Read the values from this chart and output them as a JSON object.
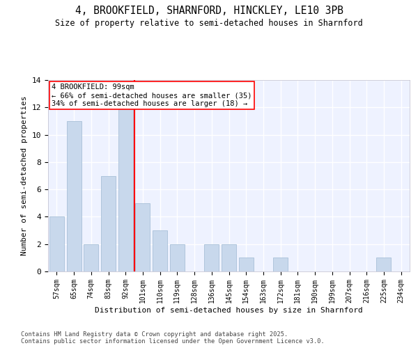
{
  "title_line1": "4, BROOKFIELD, SHARNFORD, HINCKLEY, LE10 3PB",
  "title_line2": "Size of property relative to semi-detached houses in Sharnford",
  "xlabel": "Distribution of semi-detached houses by size in Sharnford",
  "ylabel": "Number of semi-detached properties",
  "bins": [
    "57sqm",
    "65sqm",
    "74sqm",
    "83sqm",
    "92sqm",
    "101sqm",
    "110sqm",
    "119sqm",
    "128sqm",
    "136sqm",
    "145sqm",
    "154sqm",
    "163sqm",
    "172sqm",
    "181sqm",
    "190sqm",
    "199sqm",
    "207sqm",
    "216sqm",
    "225sqm",
    "234sqm"
  ],
  "counts": [
    4,
    11,
    2,
    7,
    12,
    5,
    3,
    2,
    0,
    2,
    2,
    1,
    0,
    1,
    0,
    0,
    0,
    0,
    0,
    1,
    0
  ],
  "bar_color": "#c8d8ec",
  "bar_edge_color": "#a8c0d8",
  "vline_x_index": 5,
  "vline_color": "red",
  "annotation_text": "4 BROOKFIELD: 99sqm\n← 66% of semi-detached houses are smaller (35)\n34% of semi-detached houses are larger (18) →",
  "annotation_box_color": "white",
  "annotation_border_color": "red",
  "yticks": [
    0,
    2,
    4,
    6,
    8,
    10,
    12,
    14
  ],
  "ylim": [
    0,
    14
  ],
  "background_color": "#eef2ff",
  "grid_color": "white",
  "footer_text": "Contains HM Land Registry data © Crown copyright and database right 2025.\nContains public sector information licensed under the Open Government Licence v3.0."
}
